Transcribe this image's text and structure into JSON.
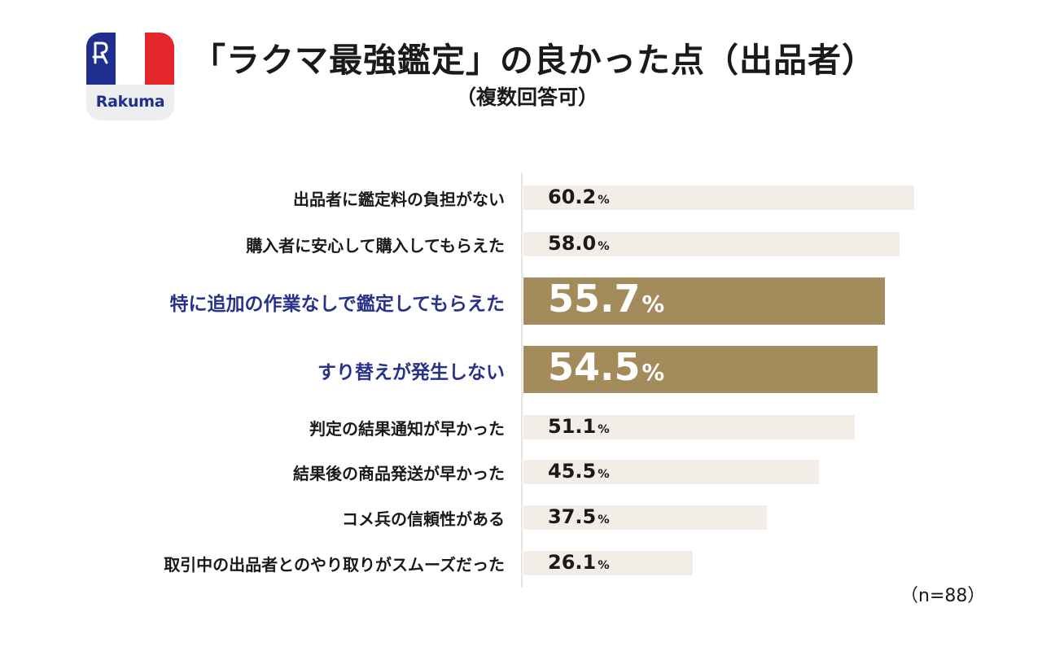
{
  "logo": {
    "wordmark": "Rakuma",
    "colors": {
      "blue": "#1f2f8f",
      "white": "#ffffff",
      "red": "#e3262c"
    }
  },
  "title": "「ラクマ最強鑑定」の良かった点（出品者）",
  "subtitle": "（複数回答可）",
  "note": "（n=88）",
  "colors": {
    "bar": "#f3ede8",
    "highlight_bar": "#a48b5c",
    "highlight_label": "#28328a"
  },
  "chart_data": {
    "type": "bar",
    "orientation": "horizontal",
    "unit": "%",
    "xlim": [
      0,
      100
    ],
    "categories": [
      "出品者に鑑定料の負担がない",
      "購入者に安心して購入してもらえた",
      "特に追加の作業なしで鑑定してもらえた",
      "すり替えが発生しない",
      "判定の結果通知が早かった",
      "結果後の商品発送が早かった",
      "コメ兵の信頼性がある",
      "取引中の出品者とのやり取りがスムーズだった"
    ],
    "values": [
      60.2,
      58.0,
      55.7,
      54.5,
      51.1,
      45.5,
      37.5,
      26.1
    ],
    "value_labels": [
      "60.2",
      "58.0",
      "55.7",
      "54.5",
      "51.1",
      "45.5",
      "37.5",
      "26.1"
    ],
    "highlighted": [
      false,
      false,
      true,
      true,
      false,
      false,
      false,
      false
    ]
  }
}
